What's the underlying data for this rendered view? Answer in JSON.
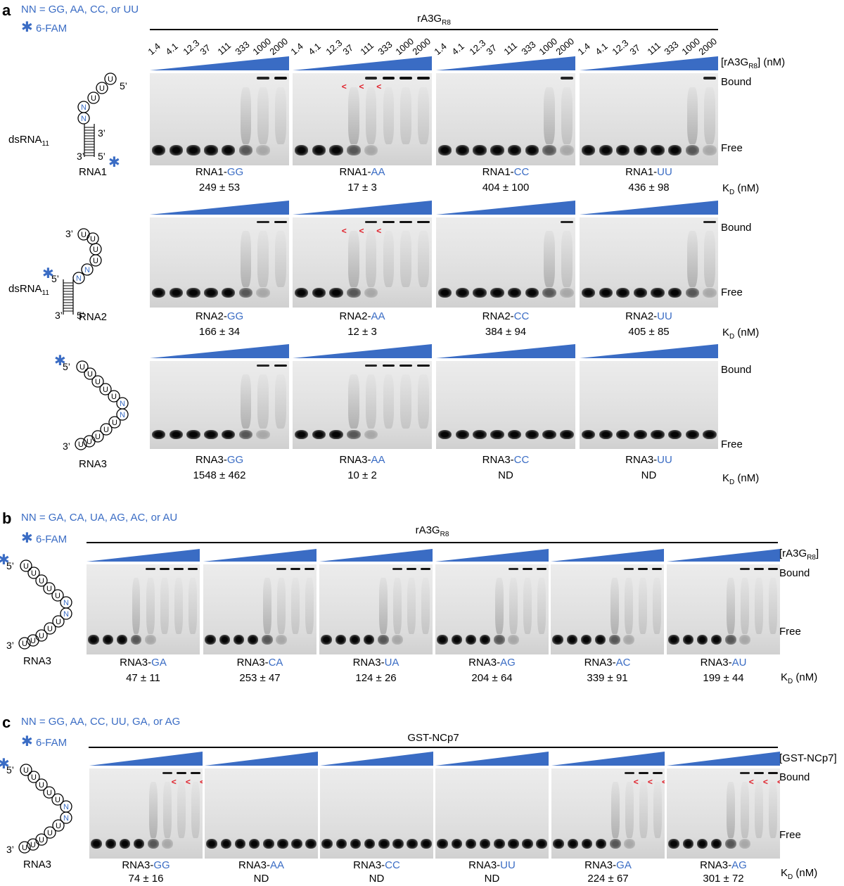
{
  "panel_a": {
    "letter": "a",
    "legend_nn": "NN = GG, AA, CC, or UU",
    "legend_fam": "6-FAM",
    "title_main": "rA3G",
    "title_sub": "R8",
    "conc_label_main": "[rA3G",
    "conc_label_sub": "R8",
    "conc_label_end": "] (nM)",
    "concentrations": [
      "1.4",
      "4.1",
      "12.3",
      "37",
      "111",
      "333",
      "1000",
      "2000"
    ],
    "bound": "Bound",
    "free": "Free",
    "kd_main": "K",
    "kd_sub": "D",
    "kd_unit": " (nM)",
    "rows": [
      {
        "name": "RNA1",
        "struct_label": "dsRNA",
        "struct_sub": "11",
        "gels": [
          {
            "prefix": "RNA1-",
            "nn": "GG",
            "kd": "249 ± 53"
          },
          {
            "prefix": "RNA1-",
            "nn": "AA",
            "kd": "17 ± 3"
          },
          {
            "prefix": "RNA1-",
            "nn": "CC",
            "kd": "404  ± 100"
          },
          {
            "prefix": "RNA1-",
            "nn": "UU",
            "kd": "436  ± 98"
          }
        ]
      },
      {
        "name": "RNA2",
        "struct_label": "dsRNA",
        "struct_sub": "11",
        "gels": [
          {
            "prefix": "RNA2-",
            "nn": "GG",
            "kd": "166 ± 34"
          },
          {
            "prefix": "RNA2-",
            "nn": "AA",
            "kd": "12  ± 3"
          },
          {
            "prefix": "RNA2-",
            "nn": "CC",
            "kd": "384  ± 94"
          },
          {
            "prefix": "RNA2-",
            "nn": "UU",
            "kd": "405  ± 85"
          }
        ]
      },
      {
        "name": "RNA3",
        "gels": [
          {
            "prefix": "RNA3-",
            "nn": "GG",
            "kd": "1548 ± 462"
          },
          {
            "prefix": "RNA3-",
            "nn": "AA",
            "kd": "10 ± 2"
          },
          {
            "prefix": "RNA3-",
            "nn": "CC",
            "kd": "ND"
          },
          {
            "prefix": "RNA3-",
            "nn": "UU",
            "kd": "ND"
          }
        ]
      }
    ]
  },
  "panel_b": {
    "letter": "b",
    "legend_nn": "NN = GA, CA, UA, AG, AC, or AU",
    "legend_fam": "6-FAM",
    "title_main": "rA3G",
    "title_sub": "R8",
    "conc_label_main": "[rA3G",
    "conc_label_sub": "R8",
    "conc_label_end": "]",
    "bound": "Bound",
    "free": "Free",
    "kd_main": "K",
    "kd_sub": "D",
    "kd_unit": " (nM)",
    "name": "RNA3",
    "gels": [
      {
        "prefix": "RNA3-",
        "nn": "GA",
        "kd": "47 ± 11"
      },
      {
        "prefix": "RNA3-",
        "nn": "CA",
        "kd": "253 ± 47"
      },
      {
        "prefix": "RNA3-",
        "nn": "UA",
        "kd": "124 ± 26"
      },
      {
        "prefix": "RNA3-",
        "nn": "AG",
        "kd": "204 ± 64"
      },
      {
        "prefix": "RNA3-",
        "nn": "AC",
        "kd": "339 ± 91"
      },
      {
        "prefix": "RNA3-",
        "nn": "AU",
        "kd": "199 ± 44"
      }
    ]
  },
  "panel_c": {
    "letter": "c",
    "legend_nn": "NN = GG, AA, CC, UU, GA, or AG",
    "legend_fam": "6-FAM",
    "title_main": "GST-NCp7",
    "conc_label": "[GST-NCp7]",
    "bound": "Bound",
    "free": "Free",
    "kd_main": "K",
    "kd_sub": "D",
    "kd_unit": " (nM)",
    "name": "RNA3",
    "gels": [
      {
        "prefix": "RNA3-",
        "nn": "GG",
        "kd": "74 ± 16"
      },
      {
        "prefix": "RNA3-",
        "nn": "AA",
        "kd": "ND"
      },
      {
        "prefix": "RNA3-",
        "nn": "CC",
        "kd": "ND"
      },
      {
        "prefix": "RNA3-",
        "nn": "UU",
        "kd": "ND"
      },
      {
        "prefix": "RNA3-",
        "nn": "GA",
        "kd": "224 ± 67"
      },
      {
        "prefix": "RNA3-",
        "nn": "AG",
        "kd": "301 ± 72"
      }
    ]
  },
  "struct_text": {
    "five": "5’",
    "three": "3’",
    "u": "U",
    "n": "N"
  },
  "colors": {
    "accent": "#3a6cc4",
    "arrow": "#e0202a"
  }
}
